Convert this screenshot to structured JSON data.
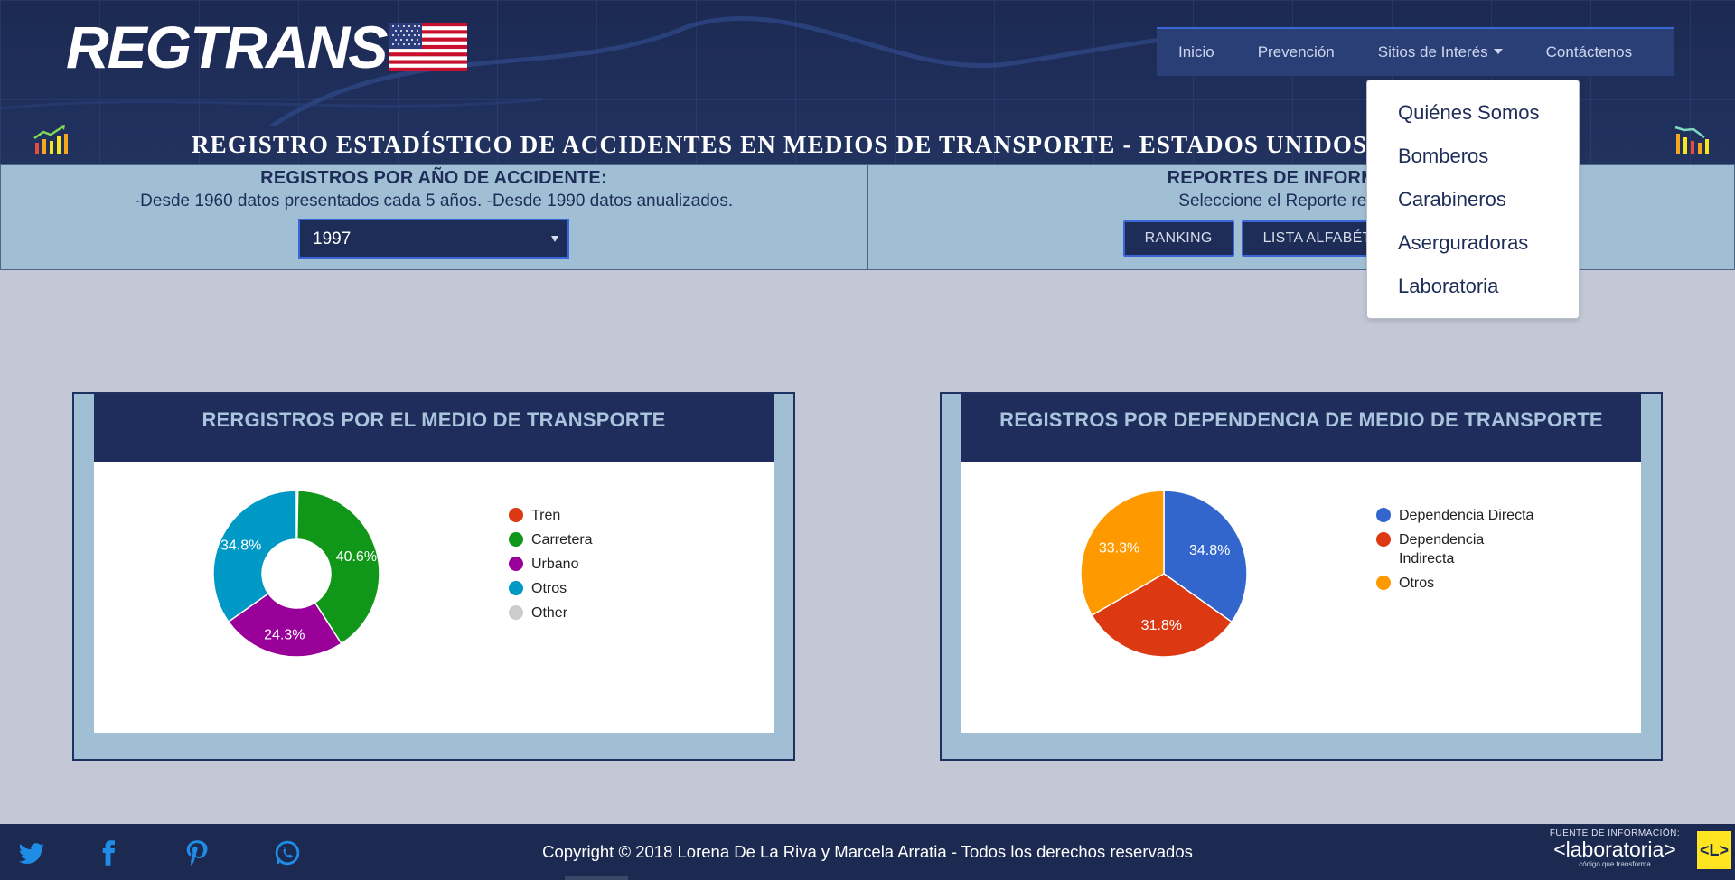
{
  "brand": {
    "logo_text": "REGTRANS"
  },
  "nav": {
    "items": [
      {
        "label": "Inicio"
      },
      {
        "label": "Prevención"
      },
      {
        "label": "Sitios de Interés",
        "has_dropdown": true
      },
      {
        "label": "Contáctenos"
      }
    ]
  },
  "dropdown": {
    "items": [
      "Quiénes Somos",
      "Bomberos",
      "Carabineros",
      "Aserguradoras",
      "Laboratoria"
    ]
  },
  "banner": {
    "title": "REGISTRO ESTADÍSTICO DE ACCIDENTES EN MEDIOS DE TRANSPORTE - ESTADOS UNIDOS DE AMERICA"
  },
  "filters": {
    "left": {
      "title": "REGISTROS POR AÑO DE ACCIDENTE:",
      "subtitle": "-Desde 1960 datos presentados cada 5 años. -Desde 1990 datos anualizados.",
      "selected_year": "1997"
    },
    "right": {
      "title": "REPORTES DE INFORMACIÓN",
      "subtitle": "Seleccione el Reporte requerido",
      "buttons": [
        "RANKING",
        "LISTA ALFABÉTICA"
      ]
    }
  },
  "chart_data": [
    {
      "type": "pie",
      "variant": "donut",
      "title": "RERGISTROS POR EL MEDIO DE TRANSPORTE",
      "categories": [
        "Tren",
        "Carretera",
        "Urbano",
        "Otros",
        "Other"
      ],
      "values": [
        0.3,
        40.6,
        24.3,
        34.8,
        0
      ],
      "colors": [
        "#dc3912",
        "#109618",
        "#990099",
        "#0099c6",
        "#cccccc"
      ],
      "data_labels": [
        "",
        "40.6%",
        "24.3%",
        "34.8%",
        ""
      ],
      "legend": "right"
    },
    {
      "type": "pie",
      "title": "REGISTROS POR DEPENDENCIA DE MEDIO DE TRANSPORTE",
      "categories": [
        "Dependencia Directa",
        "Dependencia Indirecta",
        "Otros"
      ],
      "legend_labels": [
        [
          "Dependencia Directa"
        ],
        [
          "Dependencia",
          "Indirecta"
        ],
        [
          "Otros"
        ]
      ],
      "values": [
        34.8,
        31.8,
        33.3
      ],
      "colors": [
        "#3366cc",
        "#dc3912",
        "#ff9900"
      ],
      "data_labels": [
        "34.8%",
        "31.8%",
        "33.3%"
      ],
      "legend": "right"
    }
  ],
  "footer": {
    "copyright": "Copyright © 2018 Lorena De La Riva y Marcela Arratia - Todos los derechos reservados",
    "social": [
      "twitter-icon",
      "facebook-icon",
      "pinterest-icon",
      "whatsapp-icon"
    ],
    "source_label": "FUENTE DE INFORMACIÓN:",
    "source_name": "<laboratoria>",
    "source_tagline": "código que transforma",
    "source_badge": "<L>"
  },
  "colors": {
    "navy": "#1e2d57",
    "panel": "#a0bfd5",
    "page_bg": "#c4c8d6",
    "accent": "#3a66d8",
    "badge_yellow": "#ffe521"
  }
}
